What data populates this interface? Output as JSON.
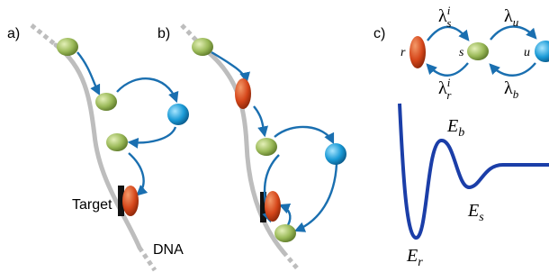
{
  "panels": {
    "a": {
      "label": "a)",
      "target": "Target",
      "dna": "DNA"
    },
    "b": {
      "label": "b)"
    },
    "c": {
      "label": "c)",
      "states": {
        "r": "r",
        "s": "s",
        "u": "u"
      },
      "rates": {
        "s_i": {
          "symbol": "λ",
          "sub": "s",
          "sup": "i"
        },
        "r_i": {
          "symbol": "λ",
          "sub": "r",
          "sup": "i"
        },
        "u": {
          "symbol": "λ",
          "sub": "u"
        },
        "b": {
          "symbol": "λ",
          "sub": "b"
        }
      },
      "energies": {
        "b": {
          "symbol": "E",
          "sub": "b"
        },
        "s": {
          "symbol": "E",
          "sub": "s"
        },
        "r": {
          "symbol": "E",
          "sub": "r"
        }
      }
    }
  }
}
